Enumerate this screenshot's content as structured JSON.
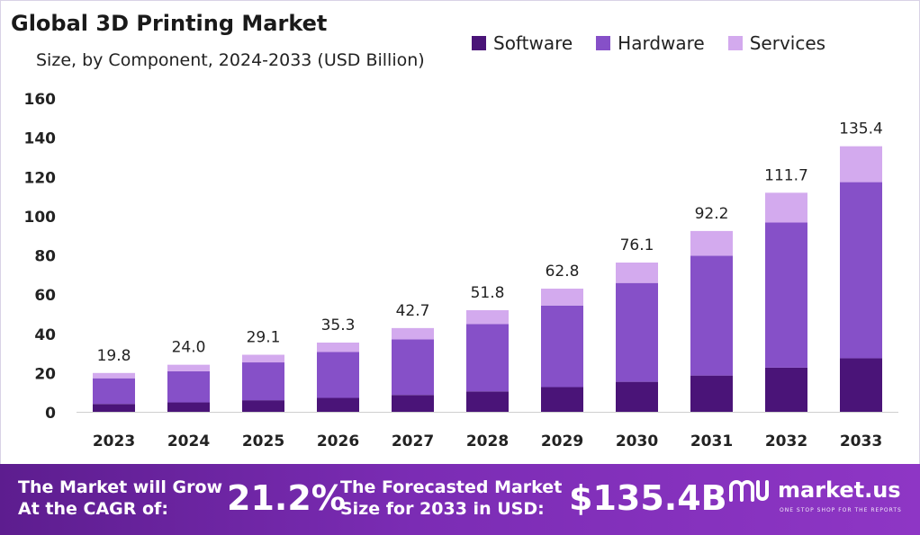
{
  "title": "Global 3D Printing Market",
  "subtitle": "Size, by Component, 2024-2033 (USD Billion)",
  "colors": {
    "software": "#4a1478",
    "hardware": "#8650c8",
    "services": "#d3aaee"
  },
  "chart_data": {
    "type": "bar",
    "stacked": true,
    "categories": [
      "2023",
      "2024",
      "2025",
      "2026",
      "2027",
      "2028",
      "2029",
      "2030",
      "2031",
      "2032",
      "2033"
    ],
    "series": [
      {
        "name": "Software",
        "values": [
          4.0,
          4.8,
          5.9,
          7.1,
          8.6,
          10.4,
          12.6,
          15.3,
          18.5,
          22.5,
          27.3
        ]
      },
      {
        "name": "Hardware",
        "values": [
          13.1,
          15.9,
          19.3,
          23.4,
          28.3,
          34.3,
          41.6,
          50.4,
          61.1,
          74.0,
          89.8
        ]
      },
      {
        "name": "Services",
        "values": [
          2.7,
          3.3,
          3.9,
          4.8,
          5.8,
          7.1,
          8.6,
          10.4,
          12.6,
          15.2,
          18.3
        ]
      }
    ],
    "totals": [
      "19.8",
      "24.0",
      "29.1",
      "35.3",
      "42.7",
      "51.8",
      "62.8",
      "76.1",
      "92.2",
      "111.7",
      "135.4"
    ],
    "ylim": [
      0,
      160
    ],
    "yticks": [
      0,
      20,
      40,
      60,
      80,
      100,
      120,
      140,
      160
    ],
    "legend_position": "top-right",
    "grid": false
  },
  "footer": {
    "cagr_text_1": "The Market will Grow",
    "cagr_text_2": "At the CAGR of:",
    "cagr_value": "21.2%",
    "forecast_text_1": "The Forecasted Market",
    "forecast_text_2": "Size for 2033 in USD:",
    "forecast_value": "$135.4B",
    "brand_name": "market.us",
    "brand_tagline": "ONE STOP SHOP FOR THE REPORTS"
  }
}
